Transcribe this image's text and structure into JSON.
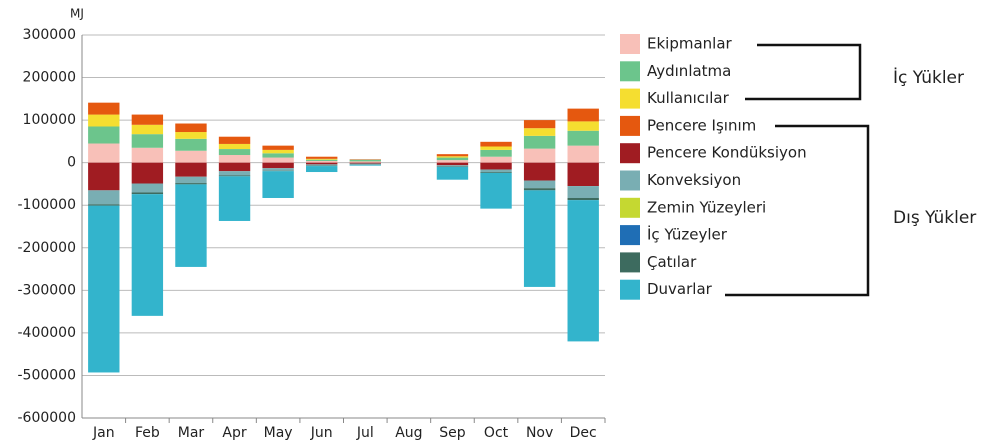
{
  "chart_data": {
    "type": "bar",
    "stacked": true,
    "unit": "MJ",
    "categories": [
      "Jan",
      "Feb",
      "Mar",
      "Apr",
      "May",
      "Jun",
      "Jul",
      "Aug",
      "Sep",
      "Oct",
      "Nov",
      "Dec"
    ],
    "series": [
      {
        "name": "Ekipmanlar",
        "color": "#f8c0b8",
        "values": [
          45000,
          35000,
          28000,
          18000,
          12000,
          4000,
          3000,
          0,
          6000,
          14000,
          33000,
          40000
        ]
      },
      {
        "name": "Aydınlatma",
        "color": "#6cc58c",
        "values": [
          40000,
          32000,
          28000,
          14000,
          10000,
          3000,
          4000,
          0,
          6000,
          16000,
          30000,
          35000
        ]
      },
      {
        "name": "Kullanıcılar",
        "color": "#f5de30",
        "values": [
          28000,
          22000,
          16000,
          12000,
          8000,
          2000,
          0,
          0,
          3000,
          8000,
          18000,
          22000
        ]
      },
      {
        "name": "Pencere Işınım",
        "color": "#e5580f",
        "values": [
          28000,
          24000,
          20000,
          17000,
          10000,
          5000,
          1000,
          0,
          5000,
          11000,
          19000,
          30000
        ]
      },
      {
        "name": "Pencere Kondüksiyon",
        "color": "#a01c22",
        "values": [
          -65000,
          -49000,
          -33000,
          -20000,
          -13000,
          -4000,
          -2000,
          0,
          -6000,
          -16000,
          -42000,
          -55000
        ]
      },
      {
        "name": "Konveksiyon",
        "color": "#79aeb3",
        "values": [
          -33000,
          -21000,
          -15000,
          -10000,
          -6000,
          -3000,
          -2000,
          0,
          -3000,
          -6000,
          -18000,
          -28000
        ]
      },
      {
        "name": "Zemin Yüzeyleri",
        "color": "#c5d831",
        "values": [
          0,
          0,
          0,
          0,
          0,
          0,
          0,
          0,
          0,
          0,
          0,
          0
        ]
      },
      {
        "name": "İç Yüzeyler",
        "color": "#1f6eb5",
        "values": [
          0,
          0,
          0,
          0,
          0,
          0,
          0,
          0,
          0,
          0,
          0,
          0
        ]
      },
      {
        "name": "Çatılar",
        "color": "#3d6b5f",
        "values": [
          -3000,
          -4000,
          -3000,
          -2000,
          -1000,
          -1000,
          -1000,
          0,
          -1000,
          -2000,
          -5000,
          -5000
        ]
      },
      {
        "name": "Duvarlar",
        "color": "#33b4cc",
        "values": [
          -392000,
          -286000,
          -194000,
          -105000,
          -63000,
          -14000,
          -2000,
          0,
          -30000,
          -84000,
          -227000,
          -332000
        ]
      }
    ],
    "ylim": [
      -600000,
      300000
    ],
    "yticks": [
      300000,
      200000,
      100000,
      0,
      -100000,
      -200000,
      -300000,
      -400000,
      -500000,
      -600000
    ],
    "grid": true,
    "annotations": [
      "İç Yükler",
      "Dış Yükler"
    ]
  }
}
